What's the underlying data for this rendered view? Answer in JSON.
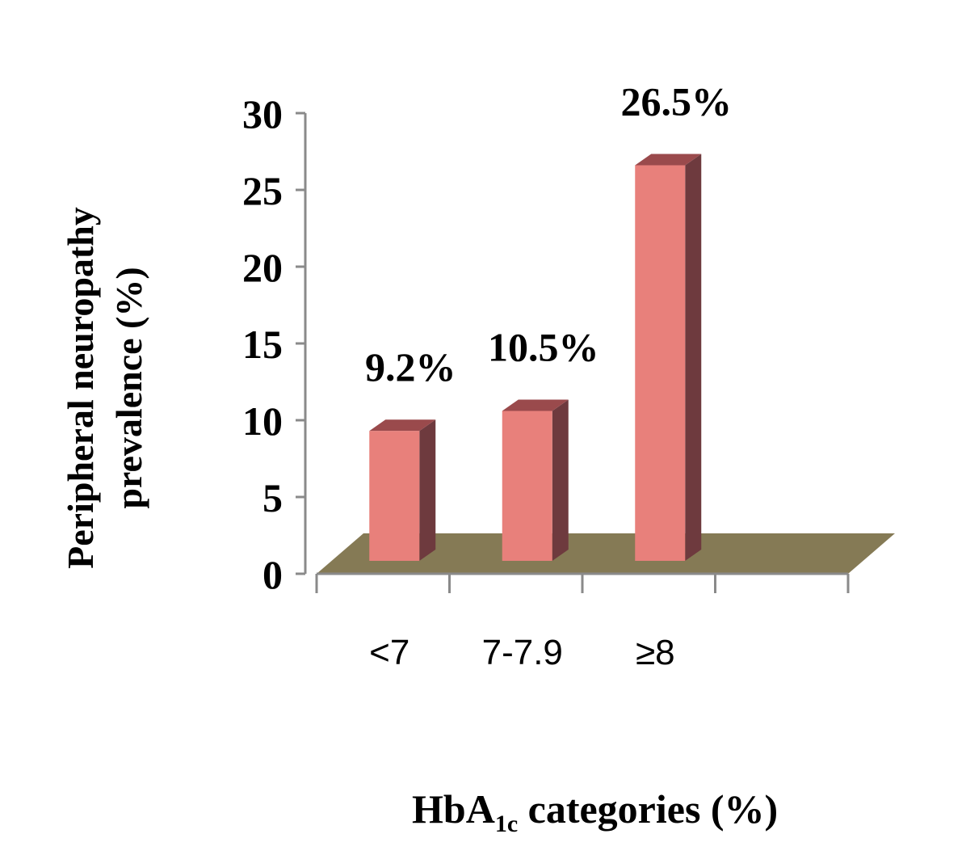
{
  "chart_data": {
    "type": "bar",
    "title": "",
    "categories": [
      "<7",
      "7-7.9",
      "≥8"
    ],
    "values": [
      9.2,
      10.5,
      26.5
    ],
    "data_labels": [
      "9.2%",
      "10.5%",
      "26.5%"
    ],
    "ylabel_line1": "Peripheral neuropathy",
    "ylabel_line2": "prevalence (%)",
    "xlabel_main": "HbA",
    "xlabel_sub": "1c",
    "xlabel_rest": " categories (%)",
    "ylim": [
      0,
      30
    ],
    "yticks": [
      "0",
      "5",
      "10",
      "15",
      "20",
      "25",
      "30"
    ],
    "grid": false,
    "legend": "none",
    "colors": {
      "bar_front": "#e8807b",
      "bar_side": "#6e3a3e",
      "bar_top": "#9a4a4c",
      "floor": "#857a55",
      "axis": "#8a8a8a"
    }
  }
}
